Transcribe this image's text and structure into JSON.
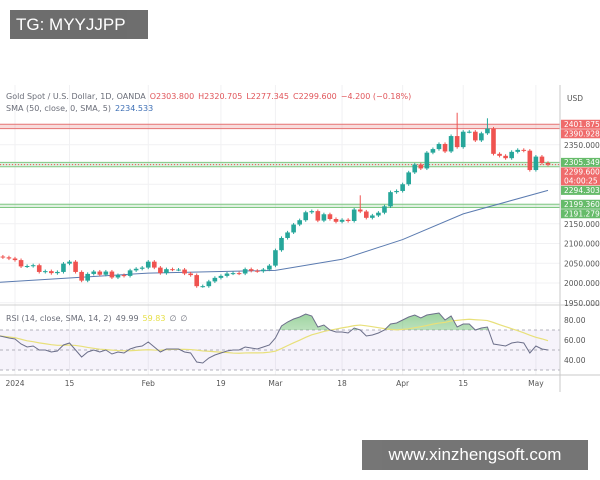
{
  "watermarks": {
    "top": "TG: MYYJJPP",
    "bottom": "www.xinzhengsoft.com"
  },
  "legend": {
    "symbol": "Gold Spot / U.S. Dollar, 1D, OANDA",
    "open": "O2303.800",
    "high": "H2320.705",
    "low": "L2277.345",
    "close": "C2299.600",
    "change": "−4.200 (−0.18%)",
    "sma_label": "SMA (50, close, 0, SMA, 5)",
    "sma_value": "2234.533",
    "rsi_label": "RSI (14, close, SMA, 14, 2)",
    "rsi_value": "49.99",
    "rsi_ma_value": "59.83",
    "rsi_extra1": "∅",
    "rsi_extra2": "∅"
  },
  "colors": {
    "up": "#26a69a",
    "down": "#ef5350",
    "sma": "#5b7bb0",
    "rsi": "#7e57c2",
    "rsi_ma": "#e8e07a",
    "resistance": "#e57373",
    "support": "#81c784"
  },
  "chart_data": [
    {
      "type": "candlestick",
      "currency": "USD",
      "ylim": [
        1930,
        2440
      ],
      "price_ticks": [
        "2350.000",
        "2150.000",
        "2100.000",
        "2050.000",
        "2000.000",
        "1950.000"
      ],
      "price_tags": [
        {
          "label": "2401.875",
          "kind": "resistance"
        },
        {
          "label": "2390.928",
          "kind": "resistance"
        },
        {
          "label": "2305.349",
          "kind": "support"
        },
        {
          "label": "2299.600",
          "kind": "last",
          "sub": "04:00:25"
        },
        {
          "label": "2294.303",
          "kind": "support"
        },
        {
          "label": "2199.360",
          "kind": "support"
        },
        {
          "label": "2191.279",
          "kind": "support"
        }
      ],
      "bands": [
        {
          "kind": "resistance",
          "from": 2390.928,
          "to": 2401.875
        },
        {
          "kind": "support",
          "from": 2294.303,
          "to": 2305.349
        },
        {
          "kind": "support",
          "from": 2191.279,
          "to": 2199.36
        }
      ],
      "last_price": 2299.6,
      "date_ticks": [
        {
          "date": "2024-01-02",
          "label": "2024"
        },
        {
          "date": "2024-01-15",
          "label": "15"
        },
        {
          "date": "2024-02-01",
          "label": "Feb"
        },
        {
          "date": "2024-02-19",
          "label": "19"
        },
        {
          "date": "2024-03-01",
          "label": "Mar"
        },
        {
          "date": "2024-03-18",
          "label": "18"
        },
        {
          "date": "2024-04-01",
          "label": "Apr"
        },
        {
          "date": "2024-04-15",
          "label": "15"
        },
        {
          "date": "2024-05-01",
          "label": "May"
        }
      ],
      "highs_notable": {
        "2024-04-12": 2431,
        "2024-04-19": 2417,
        "2024-03-21": 2222
      },
      "candles": [
        [
          "2023-12-28",
          2065
        ],
        [
          "2023-12-29",
          2062
        ],
        [
          "2024-01-02",
          2058
        ],
        [
          "2024-01-03",
          2042
        ],
        [
          "2024-01-04",
          2043
        ],
        [
          "2024-01-05",
          2045
        ],
        [
          "2024-01-08",
          2028
        ],
        [
          "2024-01-09",
          2030
        ],
        [
          "2024-01-10",
          2025
        ],
        [
          "2024-01-11",
          2028
        ],
        [
          "2024-01-12",
          2049
        ],
        [
          "2024-01-15",
          2054
        ],
        [
          "2024-01-16",
          2028
        ],
        [
          "2024-01-17",
          2006
        ],
        [
          "2024-01-18",
          2023
        ],
        [
          "2024-01-19",
          2029
        ],
        [
          "2024-01-22",
          2021
        ],
        [
          "2024-01-23",
          2029
        ],
        [
          "2024-01-24",
          2014
        ],
        [
          "2024-01-25",
          2020
        ],
        [
          "2024-01-26",
          2018
        ],
        [
          "2024-01-29",
          2032
        ],
        [
          "2024-01-30",
          2036
        ],
        [
          "2024-01-31",
          2039
        ],
        [
          "2024-02-01",
          2054
        ],
        [
          "2024-02-02",
          2039
        ],
        [
          "2024-02-05",
          2025
        ],
        [
          "2024-02-06",
          2035
        ],
        [
          "2024-02-07",
          2034
        ],
        [
          "2024-02-08",
          2034
        ],
        [
          "2024-02-09",
          2024
        ],
        [
          "2024-02-12",
          2020
        ],
        [
          "2024-02-13",
          1992
        ],
        [
          "2024-02-14",
          1992
        ],
        [
          "2024-02-15",
          2004
        ],
        [
          "2024-02-16",
          2013
        ],
        [
          "2024-02-19",
          2018
        ],
        [
          "2024-02-20",
          2024
        ],
        [
          "2024-02-21",
          2025
        ],
        [
          "2024-02-22",
          2024
        ],
        [
          "2024-02-23",
          2035
        ],
        [
          "2024-02-26",
          2031
        ],
        [
          "2024-02-27",
          2030
        ],
        [
          "2024-02-28",
          2034
        ],
        [
          "2024-02-29",
          2044
        ],
        [
          "2024-03-01",
          2083
        ],
        [
          "2024-03-04",
          2114
        ],
        [
          "2024-03-05",
          2128
        ],
        [
          "2024-03-06",
          2148
        ],
        [
          "2024-03-07",
          2159
        ],
        [
          "2024-03-08",
          2179
        ],
        [
          "2024-03-11",
          2182
        ],
        [
          "2024-03-12",
          2158
        ],
        [
          "2024-03-13",
          2174
        ],
        [
          "2024-03-14",
          2162
        ],
        [
          "2024-03-15",
          2155
        ],
        [
          "2024-03-18",
          2160
        ],
        [
          "2024-03-19",
          2157
        ],
        [
          "2024-03-20",
          2186
        ],
        [
          "2024-03-21",
          2181
        ],
        [
          "2024-03-22",
          2165
        ],
        [
          "2024-03-25",
          2171
        ],
        [
          "2024-03-26",
          2178
        ],
        [
          "2024-03-27",
          2194
        ],
        [
          "2024-03-28",
          2230
        ],
        [
          "2024-03-29",
          2233
        ],
        [
          "2024-04-01",
          2250
        ],
        [
          "2024-04-02",
          2280
        ],
        [
          "2024-04-03",
          2300
        ],
        [
          "2024-04-04",
          2290
        ],
        [
          "2024-04-05",
          2330
        ],
        [
          "2024-04-08",
          2339
        ],
        [
          "2024-04-09",
          2352
        ],
        [
          "2024-04-10",
          2333
        ],
        [
          "2024-04-11",
          2372
        ],
        [
          "2024-04-12",
          2344
        ],
        [
          "2024-04-15",
          2383
        ],
        [
          "2024-04-16",
          2383
        ],
        [
          "2024-04-17",
          2361
        ],
        [
          "2024-04-18",
          2379
        ],
        [
          "2024-04-19",
          2391
        ],
        [
          "2024-04-22",
          2327
        ],
        [
          "2024-04-23",
          2322
        ],
        [
          "2024-04-24",
          2316
        ],
        [
          "2024-04-25",
          2332
        ],
        [
          "2024-04-26",
          2337
        ],
        [
          "2024-04-29",
          2335
        ],
        [
          "2024-04-30",
          2286
        ],
        [
          "2024-05-01",
          2320
        ],
        [
          "2024-05-02",
          2303.8
        ],
        [
          "2024-05-03",
          2299.6
        ]
      ],
      "sma50": [
        [
          "2023-12-28",
          2002
        ],
        [
          "2024-02-01",
          2025
        ],
        [
          "2024-03-01",
          2032
        ],
        [
          "2024-03-18",
          2060
        ],
        [
          "2024-04-01",
          2110
        ],
        [
          "2024-04-15",
          2175
        ],
        [
          "2024-05-03",
          2234.533
        ]
      ]
    },
    {
      "type": "line",
      "name": "RSI",
      "ylim": [
        20,
        90
      ],
      "ticks": [
        "80.00",
        "60.00",
        "40.00"
      ],
      "levels": [
        70,
        50,
        30
      ],
      "rsi": [
        64,
        62,
        61,
        56,
        53,
        54,
        50,
        50,
        48,
        49,
        55,
        57,
        50,
        43,
        48,
        50,
        48,
        50,
        46,
        48,
        47,
        51,
        53,
        54,
        58,
        53,
        48,
        51,
        51,
        51,
        48,
        47,
        38,
        37,
        42,
        45,
        47,
        49,
        50,
        50,
        53,
        52,
        51,
        53,
        55,
        62,
        74,
        78,
        81,
        83,
        86,
        84,
        73,
        75,
        70,
        68,
        68,
        67,
        72,
        70,
        64,
        65,
        67,
        70,
        76,
        77,
        80,
        83,
        85,
        82,
        85,
        86,
        87,
        80,
        84,
        73,
        76,
        76,
        70,
        72,
        73,
        56,
        55,
        54,
        57,
        58,
        57,
        47,
        54,
        51,
        49.99
      ]
    }
  ]
}
